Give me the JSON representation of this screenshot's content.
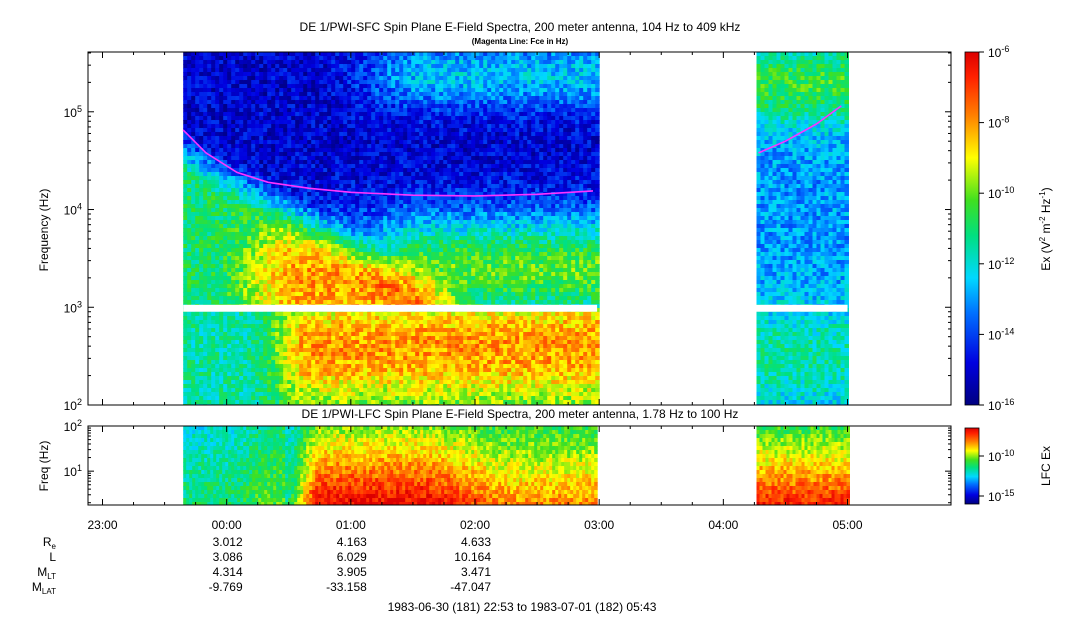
{
  "chart_data": [
    {
      "type": "heatmap",
      "title": "DE 1/PWI-SFC  Spin Plane E-Field Spectra, 200 meter antenna, 104 Hz to 409 kHz",
      "subtitle": "(Magenta Line: Fce in Hz)",
      "ylabel": "Frequency (Hz)",
      "yscale": "log",
      "ylim": [
        100,
        409000
      ],
      "yticks": [
        {
          "base": "10",
          "exp": "2",
          "value": 100
        },
        {
          "base": "10",
          "exp": "3",
          "value": 1000
        },
        {
          "base": "10",
          "exp": "4",
          "value": 10000
        },
        {
          "base": "10",
          "exp": "5",
          "value": 100000
        }
      ],
      "xlim_minutes_from_2300": [
        -7,
        410
      ],
      "data_intervals": [
        [
          "23:39",
          "02:59"
        ],
        [
          "04:16",
          "05:00"
        ]
      ],
      "lowband_gap_hz": [
        900,
        1060
      ],
      "fce_line": {
        "name": "Fce",
        "color": "#ff33ff",
        "segments": [
          [
            {
              "t": "23:39",
              "f": 65000
            },
            {
              "t": "23:50",
              "f": 38000
            },
            {
              "t": "00:05",
              "f": 24000
            },
            {
              "t": "00:20",
              "f": 19000
            },
            {
              "t": "00:40",
              "f": 16500
            },
            {
              "t": "01:00",
              "f": 15000
            },
            {
              "t": "01:30",
              "f": 14000
            },
            {
              "t": "02:00",
              "f": 13800
            },
            {
              "t": "02:30",
              "f": 14300
            },
            {
              "t": "02:57",
              "f": 15500
            }
          ],
          [
            {
              "t": "04:17",
              "f": 38000
            },
            {
              "t": "04:30",
              "f": 50000
            },
            {
              "t": "04:45",
              "f": 75000
            },
            {
              "t": "04:57",
              "f": 115000
            }
          ]
        ]
      },
      "colorbar": {
        "label_base": "Ex (V",
        "label_sup1": "2",
        "label_mid": " m",
        "label_sup2": "-2",
        "label_mid2": " Hz",
        "label_sup3": "-1",
        "label_end": ")",
        "scale": "log",
        "range": [
          1e-16,
          1e-06
        ],
        "ticks": [
          {
            "base": "10",
            "exp": "-6"
          },
          {
            "base": "10",
            "exp": "-8"
          },
          {
            "base": "10",
            "exp": "-10"
          },
          {
            "base": "10",
            "exp": "-12"
          },
          {
            "base": "10",
            "exp": "-14"
          },
          {
            "base": "10",
            "exp": "-16"
          }
        ]
      }
    },
    {
      "type": "heatmap",
      "title": "DE 1/PWI-LFC  Spin Plane E-Field Spectra, 200 meter antenna, 1.78 Hz to 100 Hz",
      "ylabel": "Freq (Hz)",
      "yscale": "log",
      "ylim": [
        1.78,
        100
      ],
      "yticks": [
        {
          "base": "10",
          "exp": "1",
          "value": 10
        },
        {
          "base": "10",
          "exp": "2",
          "value": 100
        }
      ],
      "data_intervals": [
        [
          "23:39",
          "02:59"
        ],
        [
          "04:16",
          "05:00"
        ]
      ],
      "colorbar": {
        "label": "LFC Ex",
        "scale": "log",
        "ticks": [
          {
            "base": "10",
            "exp": "-10"
          },
          {
            "base": "10",
            "exp": "-15"
          }
        ]
      }
    }
  ],
  "time_axis": {
    "ticks": [
      "23:00",
      "00:00",
      "01:00",
      "02:00",
      "03:00",
      "04:00",
      "05:00"
    ]
  },
  "ephemeris": {
    "rows": [
      {
        "label": "R",
        "sub": "e",
        "values": [
          "3.012",
          "4.163",
          "4.633"
        ]
      },
      {
        "label": "L",
        "sub": "",
        "values": [
          "3.086",
          "6.029",
          "10.164"
        ]
      },
      {
        "label": "M",
        "sub": "LT",
        "values": [
          "4.314",
          "3.905",
          "3.471"
        ]
      },
      {
        "label": "M",
        "sub": "LAT",
        "values": [
          "-9.769",
          "-33.158",
          "-47.047"
        ]
      }
    ]
  },
  "footer": "1983-06-30 (181) 22:53 to 1983-07-01 (182) 05:43"
}
